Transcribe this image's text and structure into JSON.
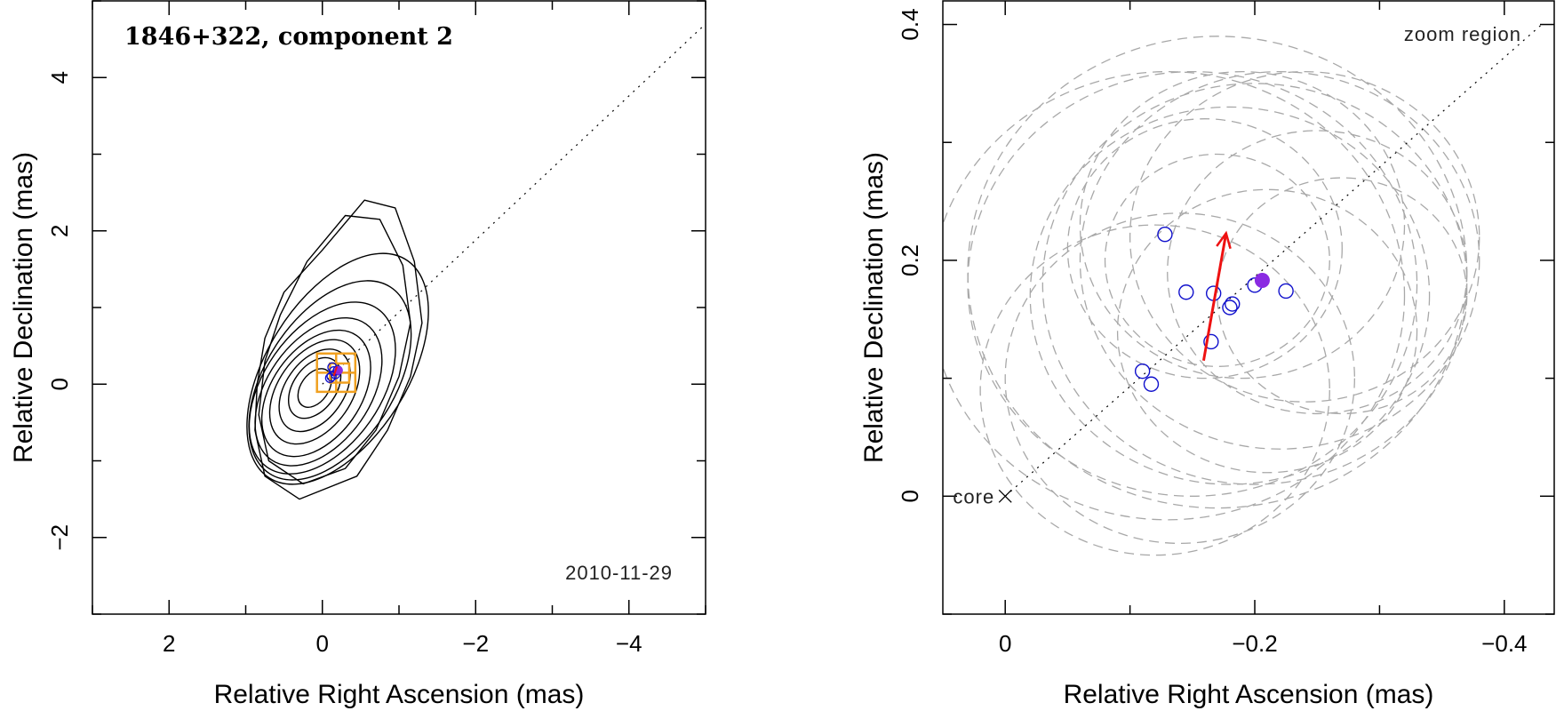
{
  "chart_data": [
    {
      "type": "contour",
      "title": "1846+322, component 2",
      "date": "2010-11-29",
      "xlabel": "Relative Right Ascension (mas)",
      "ylabel": "Relative Declination (mas)",
      "xlim": [
        3,
        -5
      ],
      "ylim": [
        -3,
        5
      ],
      "x_ticks": [
        2,
        0,
        -2,
        -4
      ],
      "x_tick_labels": [
        "2",
        "0",
        "−2",
        "−4"
      ],
      "y_ticks": [
        -2,
        0,
        2,
        4
      ],
      "y_tick_labels": [
        "−2",
        "0",
        "2",
        "4"
      ],
      "contours": [
        {
          "cx": 0.1,
          "cy": -0.05,
          "rx": 0.18,
          "ry": 0.28,
          "angle": 35
        },
        {
          "cx": 0.1,
          "cy": -0.05,
          "rx": 0.28,
          "ry": 0.44,
          "angle": 35
        },
        {
          "cx": 0.1,
          "cy": -0.08,
          "rx": 0.38,
          "ry": 0.6,
          "angle": 35
        },
        {
          "cx": 0.1,
          "cy": -0.1,
          "rx": 0.48,
          "ry": 0.76,
          "angle": 35
        },
        {
          "cx": 0.08,
          "cy": -0.12,
          "rx": 0.58,
          "ry": 0.92,
          "angle": 35
        },
        {
          "cx": 0.05,
          "cy": -0.1,
          "rx": 0.67,
          "ry": 1.08,
          "angle": 35
        },
        {
          "cx": 0.0,
          "cy": -0.05,
          "rx": 0.76,
          "ry": 1.26,
          "angle": 35
        },
        {
          "cx": -0.1,
          "cy": 0.05,
          "rx": 0.84,
          "ry": 1.45,
          "angle": 33
        },
        {
          "cx": -0.2,
          "cy": 0.2,
          "rx": 0.92,
          "ry": 1.68,
          "angle": 32
        }
      ],
      "outer_contours": [
        {
          "points": [
            [
              0.3,
              -1.5
            ],
            [
              0.75,
              -1.2
            ],
            [
              0.88,
              -0.6
            ],
            [
              0.85,
              0.0
            ],
            [
              0.75,
              0.6
            ],
            [
              0.5,
              1.2
            ],
            [
              0.0,
              1.75
            ],
            [
              -0.55,
              2.4
            ],
            [
              -0.95,
              2.3
            ],
            [
              -1.2,
              1.6
            ],
            [
              -1.3,
              0.8
            ],
            [
              -1.15,
              0.1
            ],
            [
              -0.85,
              -0.6
            ],
            [
              -0.45,
              -1.2
            ],
            [
              0.3,
              -1.5
            ]
          ]
        },
        {
          "points": [
            [
              0.25,
              -1.3
            ],
            [
              0.7,
              -1.0
            ],
            [
              0.83,
              -0.4
            ],
            [
              0.75,
              0.3
            ],
            [
              0.55,
              0.9
            ],
            [
              0.2,
              1.6
            ],
            [
              -0.3,
              2.2
            ],
            [
              -0.75,
              2.15
            ],
            [
              -1.05,
              1.55
            ],
            [
              -1.15,
              0.8
            ],
            [
              -1.0,
              0.1
            ],
            [
              -0.7,
              -0.6
            ],
            [
              -0.3,
              -1.1
            ],
            [
              0.25,
              -1.3
            ]
          ]
        }
      ],
      "jet_line": {
        "x": [
          0.0,
          -5.0
        ],
        "y": [
          0.0,
          4.7
        ]
      },
      "zoom_boxes": [
        {
          "x0": 0.07,
          "x1": -0.43,
          "y0": -0.1,
          "y1": 0.4
        },
        {
          "x0": -0.1,
          "x1": -0.35,
          "y0": 0.02,
          "y1": 0.27
        }
      ],
      "zoom_box_color": "#f0a020",
      "points": {
        "x": [
          -0.13,
          -0.15,
          -0.2,
          -0.12,
          -0.17,
          -0.1
        ],
        "y": [
          0.22,
          0.17,
          0.18,
          0.1,
          0.13,
          0.08
        ]
      },
      "filled_point": {
        "x": -0.21,
        "y": 0.18
      },
      "arrow": {
        "x": [
          -0.15,
          -0.19
        ],
        "y": [
          0.11,
          0.23
        ]
      }
    },
    {
      "type": "scatter",
      "title": "zoom region",
      "core_label": "core",
      "xlabel": "Relative Right Ascension (mas)",
      "ylabel": "Relative Declination (mas)",
      "xlim": [
        0.05,
        -0.44
      ],
      "ylim": [
        -0.1,
        0.42
      ],
      "x_ticks": [
        0,
        -0.2,
        -0.4
      ],
      "x_tick_labels": [
        "0",
        "−0.2",
        "−0.4"
      ],
      "y_ticks": [
        0,
        0.2,
        0.4
      ],
      "y_tick_labels": [
        "0",
        "0.2",
        "0.4"
      ],
      "core": {
        "x": 0,
        "y": 0
      },
      "jet_line": {
        "x": [
          0.0,
          -0.43
        ],
        "y": [
          0.0,
          0.4
        ]
      },
      "points": {
        "x": [
          -0.128,
          -0.145,
          -0.167,
          -0.165,
          -0.11,
          -0.117,
          -0.18,
          -0.182,
          -0.2,
          -0.225
        ],
        "y": [
          0.222,
          0.173,
          0.172,
          0.131,
          0.106,
          0.095,
          0.16,
          0.163,
          0.179,
          0.174
        ]
      },
      "filled_point": {
        "x": -0.206,
        "y": 0.183
      },
      "arrow": {
        "x": [
          -0.159,
          -0.177
        ],
        "y": [
          0.115,
          0.223
        ]
      },
      "point_color": "#1010cc",
      "filled_color": "#8a2be2",
      "arrow_color": "#ee1111",
      "error_circles": [
        {
          "x": -0.13,
          "y": 0.17,
          "r": 0.19
        },
        {
          "x": -0.15,
          "y": 0.18,
          "r": 0.18
        },
        {
          "x": -0.17,
          "y": 0.19,
          "r": 0.2
        },
        {
          "x": -0.18,
          "y": 0.17,
          "r": 0.16
        },
        {
          "x": -0.2,
          "y": 0.18,
          "r": 0.17
        },
        {
          "x": -0.22,
          "y": 0.2,
          "r": 0.16
        },
        {
          "x": -0.24,
          "y": 0.22,
          "r": 0.14
        },
        {
          "x": -0.25,
          "y": 0.19,
          "r": 0.12
        },
        {
          "x": -0.19,
          "y": 0.23,
          "r": 0.13
        },
        {
          "x": -0.16,
          "y": 0.21,
          "r": 0.11
        },
        {
          "x": -0.12,
          "y": 0.09,
          "r": 0.14
        },
        {
          "x": -0.14,
          "y": 0.1,
          "r": 0.14
        },
        {
          "x": -0.17,
          "y": 0.2,
          "r": 0.09
        },
        {
          "x": -0.27,
          "y": 0.17,
          "r": 0.1
        },
        {
          "x": -0.21,
          "y": 0.14,
          "r": 0.12
        }
      ]
    }
  ]
}
